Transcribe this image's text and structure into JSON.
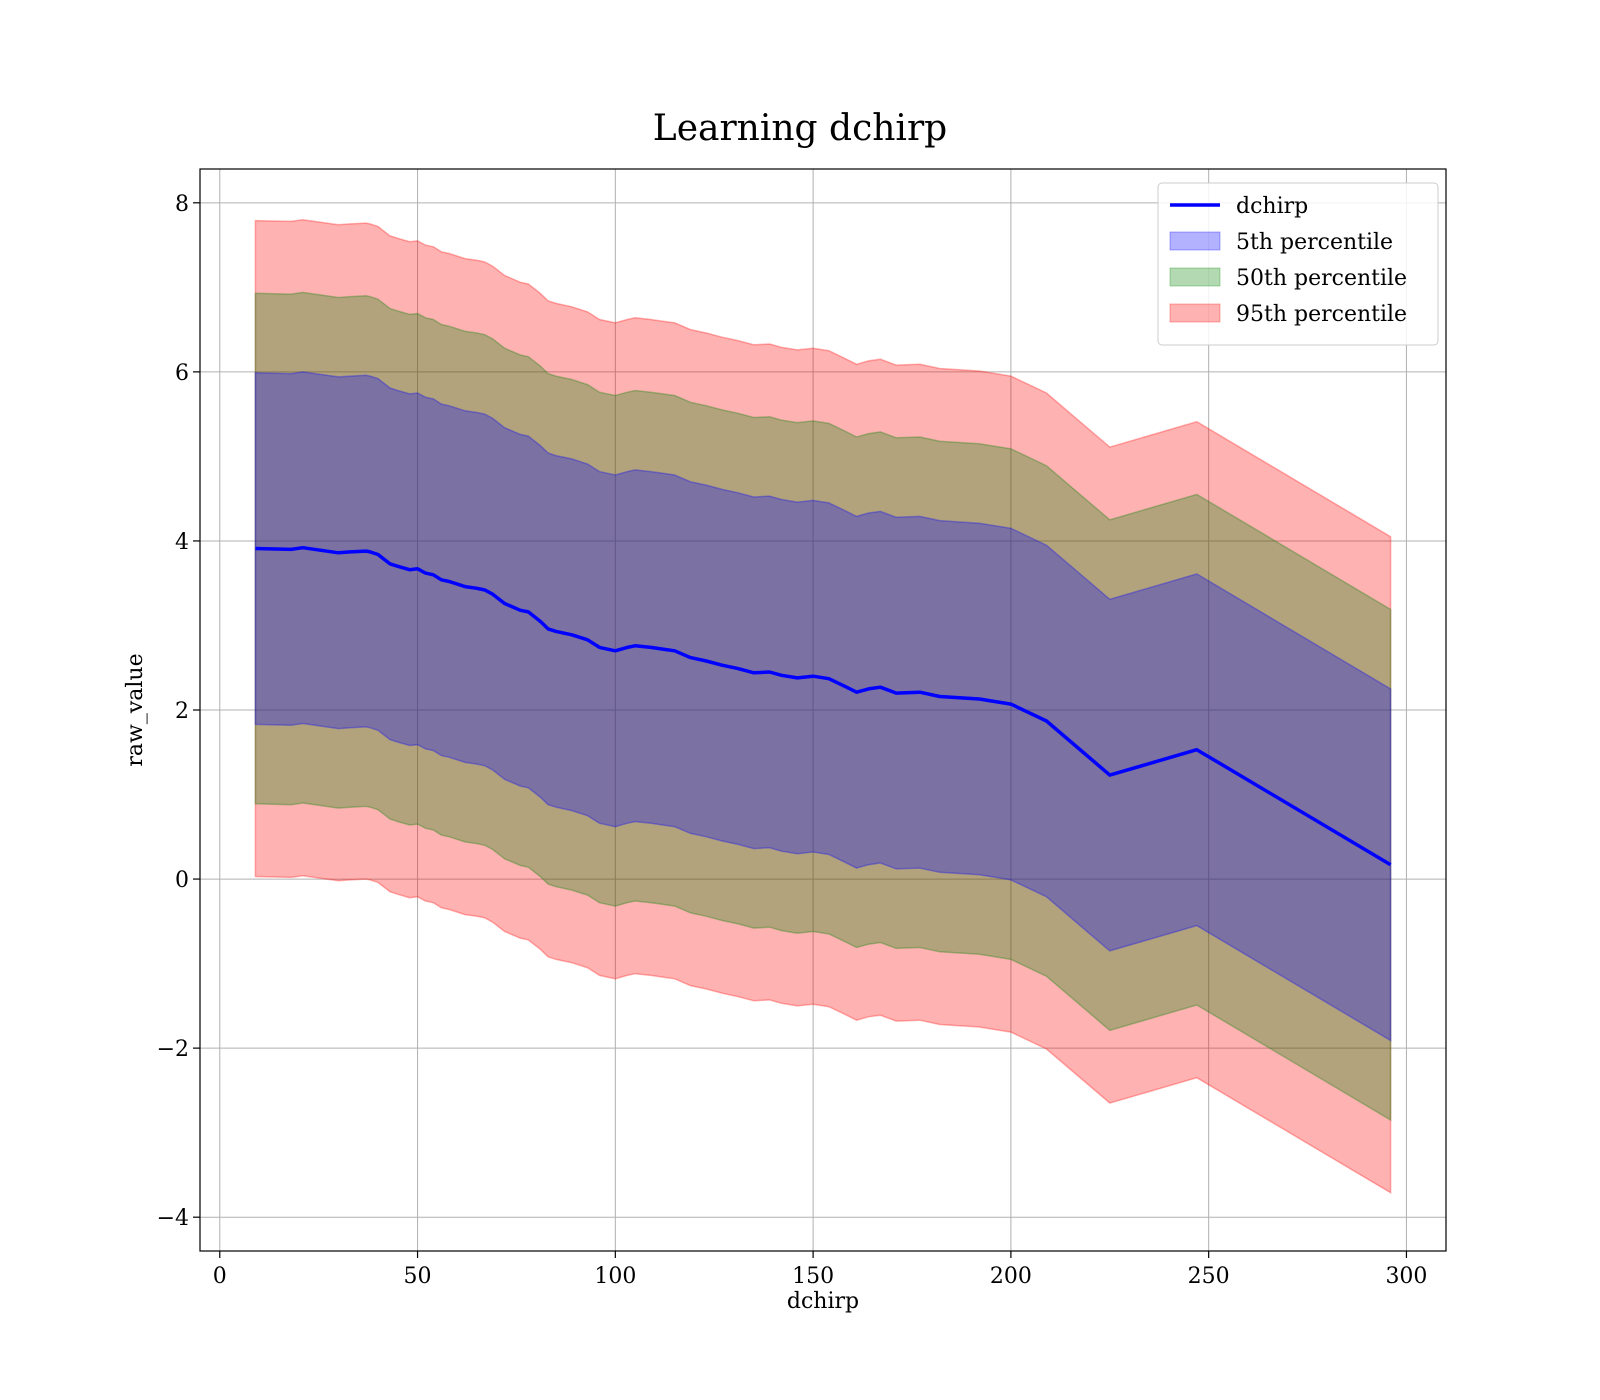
{
  "chart_data": {
    "type": "area",
    "title": "Learning dchirp",
    "xlabel": "dchirp",
    "ylabel": "raw_value",
    "xlim": [
      -5,
      310
    ],
    "ylim": [
      -4.4,
      8.4
    ],
    "grid": true,
    "legend_position": "top-right",
    "xticks": [
      0,
      50,
      100,
      150,
      200,
      250,
      300
    ],
    "xtick_labels": [
      "0",
      "50",
      "100",
      "150",
      "200",
      "250",
      "300"
    ],
    "yticks": [
      -4,
      -2,
      0,
      2,
      4,
      6,
      8
    ],
    "ytick_labels": [
      "−4",
      "−2",
      "0",
      "2",
      "4",
      "6",
      "8"
    ],
    "x": [
      9,
      18,
      21,
      30,
      33,
      37,
      38,
      40,
      43,
      45,
      48,
      50,
      52,
      54,
      56,
      58,
      62,
      65,
      67,
      69,
      72,
      76,
      78,
      81,
      83,
      85,
      89,
      93,
      96,
      100,
      103,
      105,
      109,
      112,
      115,
      119,
      123,
      127,
      131,
      135,
      139,
      142,
      146,
      150,
      154,
      158,
      161,
      164,
      167,
      171,
      177,
      182,
      192,
      200,
      209,
      217,
      225,
      247,
      296
    ],
    "series": [
      {
        "name": "dchirp",
        "kind": "line",
        "color": "#0000ff",
        "values": [
          3.91,
          3.9,
          3.92,
          3.86,
          3.87,
          3.88,
          3.87,
          3.84,
          3.73,
          3.7,
          3.66,
          3.67,
          3.62,
          3.6,
          3.54,
          3.52,
          3.46,
          3.44,
          3.42,
          3.37,
          3.26,
          3.18,
          3.16,
          3.05,
          2.96,
          2.93,
          2.89,
          2.83,
          2.74,
          2.7,
          2.74,
          2.76,
          2.74,
          2.72,
          2.7,
          2.62,
          2.58,
          2.53,
          2.49,
          2.44,
          2.45,
          2.41,
          2.38,
          2.4,
          2.37,
          2.28,
          2.21,
          2.25,
          2.27,
          2.2,
          2.21,
          2.16,
          2.13,
          2.07,
          1.87,
          1.55,
          1.23,
          1.53,
          0.17
        ]
      },
      {
        "name": "5th percentile",
        "kind": "band",
        "color": "#0000ff",
        "opacity": 0.3,
        "upper": [
          5.99,
          5.98,
          6.0,
          5.94,
          5.95,
          5.96,
          5.95,
          5.92,
          5.81,
          5.78,
          5.74,
          5.75,
          5.7,
          5.68,
          5.62,
          5.6,
          5.54,
          5.52,
          5.5,
          5.45,
          5.34,
          5.26,
          5.24,
          5.13,
          5.04,
          5.01,
          4.97,
          4.91,
          4.82,
          4.78,
          4.82,
          4.84,
          4.82,
          4.8,
          4.78,
          4.7,
          4.66,
          4.61,
          4.57,
          4.52,
          4.53,
          4.49,
          4.46,
          4.48,
          4.45,
          4.36,
          4.29,
          4.33,
          4.35,
          4.28,
          4.29,
          4.24,
          4.21,
          4.15,
          3.95,
          3.63,
          3.31,
          3.61,
          2.25
        ],
        "lower": [
          1.83,
          1.82,
          1.84,
          1.78,
          1.79,
          1.8,
          1.79,
          1.76,
          1.65,
          1.62,
          1.58,
          1.59,
          1.54,
          1.52,
          1.46,
          1.44,
          1.38,
          1.36,
          1.34,
          1.29,
          1.18,
          1.1,
          1.08,
          0.97,
          0.88,
          0.85,
          0.81,
          0.75,
          0.66,
          0.62,
          0.66,
          0.68,
          0.66,
          0.64,
          0.62,
          0.54,
          0.5,
          0.45,
          0.41,
          0.36,
          0.37,
          0.33,
          0.3,
          0.32,
          0.29,
          0.2,
          0.13,
          0.17,
          0.19,
          0.12,
          0.13,
          0.08,
          0.05,
          -0.01,
          -0.21,
          -0.53,
          -0.85,
          -0.55,
          -1.91
        ]
      },
      {
        "name": "50th percentile",
        "kind": "band",
        "color": "#008000",
        "opacity": 0.3,
        "upper": [
          6.93,
          6.92,
          6.94,
          6.88,
          6.89,
          6.9,
          6.89,
          6.86,
          6.75,
          6.72,
          6.68,
          6.69,
          6.64,
          6.62,
          6.56,
          6.54,
          6.48,
          6.46,
          6.44,
          6.39,
          6.28,
          6.2,
          6.18,
          6.07,
          5.98,
          5.95,
          5.91,
          5.85,
          5.76,
          5.72,
          5.76,
          5.78,
          5.76,
          5.74,
          5.72,
          5.64,
          5.6,
          5.55,
          5.51,
          5.46,
          5.47,
          5.43,
          5.4,
          5.42,
          5.39,
          5.3,
          5.23,
          5.27,
          5.29,
          5.22,
          5.23,
          5.18,
          5.15,
          5.09,
          4.89,
          4.57,
          4.25,
          4.55,
          3.19
        ],
        "lower": [
          0.89,
          0.88,
          0.9,
          0.84,
          0.85,
          0.86,
          0.85,
          0.82,
          0.71,
          0.68,
          0.64,
          0.65,
          0.6,
          0.58,
          0.52,
          0.5,
          0.44,
          0.42,
          0.4,
          0.35,
          0.24,
          0.16,
          0.14,
          0.03,
          -0.06,
          -0.09,
          -0.13,
          -0.19,
          -0.28,
          -0.32,
          -0.28,
          -0.26,
          -0.28,
          -0.3,
          -0.32,
          -0.4,
          -0.44,
          -0.49,
          -0.53,
          -0.58,
          -0.57,
          -0.61,
          -0.64,
          -0.62,
          -0.65,
          -0.74,
          -0.81,
          -0.77,
          -0.75,
          -0.82,
          -0.81,
          -0.86,
          -0.89,
          -0.95,
          -1.15,
          -1.47,
          -1.79,
          -1.49,
          -2.85
        ]
      },
      {
        "name": "95th percentile",
        "kind": "band",
        "color": "#ff0000",
        "opacity": 0.3,
        "upper": [
          7.79,
          7.78,
          7.8,
          7.74,
          7.75,
          7.76,
          7.75,
          7.72,
          7.61,
          7.58,
          7.54,
          7.55,
          7.5,
          7.48,
          7.42,
          7.4,
          7.34,
          7.32,
          7.3,
          7.25,
          7.14,
          7.06,
          7.04,
          6.93,
          6.84,
          6.81,
          6.77,
          6.71,
          6.62,
          6.58,
          6.62,
          6.64,
          6.62,
          6.6,
          6.58,
          6.5,
          6.46,
          6.41,
          6.37,
          6.32,
          6.33,
          6.29,
          6.26,
          6.28,
          6.25,
          6.16,
          6.09,
          6.13,
          6.15,
          6.08,
          6.09,
          6.04,
          6.01,
          5.95,
          5.75,
          5.43,
          5.11,
          5.41,
          4.05
        ],
        "lower": [
          0.03,
          0.02,
          0.04,
          -0.02,
          -0.01,
          0.0,
          -0.01,
          -0.04,
          -0.15,
          -0.18,
          -0.22,
          -0.21,
          -0.26,
          -0.28,
          -0.34,
          -0.36,
          -0.42,
          -0.44,
          -0.46,
          -0.51,
          -0.62,
          -0.7,
          -0.72,
          -0.83,
          -0.92,
          -0.95,
          -0.99,
          -1.05,
          -1.14,
          -1.18,
          -1.14,
          -1.12,
          -1.14,
          -1.16,
          -1.18,
          -1.26,
          -1.3,
          -1.35,
          -1.39,
          -1.44,
          -1.43,
          -1.47,
          -1.5,
          -1.48,
          -1.51,
          -1.6,
          -1.67,
          -1.63,
          -1.61,
          -1.68,
          -1.67,
          -1.72,
          -1.75,
          -1.81,
          -2.01,
          -2.33,
          -2.65,
          -2.35,
          -3.71
        ]
      }
    ]
  }
}
